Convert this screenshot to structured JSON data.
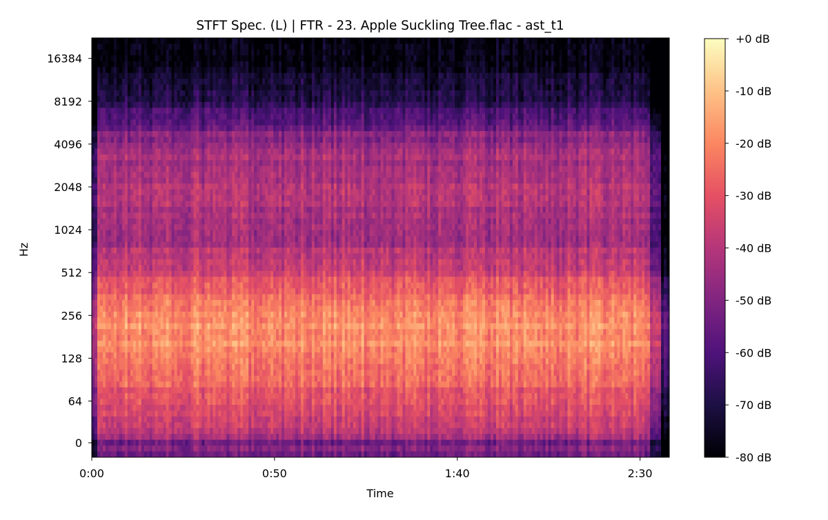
{
  "chart_data": {
    "type": "heatmap",
    "title": "STFT Spec. (L) | FTR - 23. Apple Suckling Tree.flac - ast_t1",
    "xlabel": "Time",
    "ylabel": "Hz",
    "y_scale": "log2 (symlog)",
    "colormap": "magma",
    "x_ticks": [
      {
        "label": "0:00",
        "seconds": 0
      },
      {
        "label": "0:50",
        "seconds": 50
      },
      {
        "label": "1:40",
        "seconds": 100
      },
      {
        "label": "2:30",
        "seconds": 150
      }
    ],
    "x_range_seconds": [
      0,
      158
    ],
    "y_ticks": [
      {
        "label": "16384",
        "hz": 16384
      },
      {
        "label": "8192",
        "hz": 8192
      },
      {
        "label": "4096",
        "hz": 4096
      },
      {
        "label": "2048",
        "hz": 2048
      },
      {
        "label": "1024",
        "hz": 1024
      },
      {
        "label": "512",
        "hz": 512
      },
      {
        "label": "256",
        "hz": 256
      },
      {
        "label": "128",
        "hz": 128
      },
      {
        "label": "64",
        "hz": 64
      },
      {
        "label": "0",
        "hz": 0
      }
    ],
    "y_range_hz": [
      0,
      22050
    ],
    "colorbar": {
      "ticks": [
        "+0 dB",
        "-10 dB",
        "-20 dB",
        "-30 dB",
        "-40 dB",
        "-50 dB",
        "-60 dB",
        "-70 dB",
        "-80 dB"
      ],
      "range_db": [
        -80,
        0
      ]
    },
    "band_profile_db": [
      {
        "hz": 0,
        "db": -52
      },
      {
        "hz": 40,
        "db": -35
      },
      {
        "hz": 64,
        "db": -33
      },
      {
        "hz": 100,
        "db": -22
      },
      {
        "hz": 128,
        "db": -20
      },
      {
        "hz": 200,
        "db": -18
      },
      {
        "hz": 256,
        "db": -20
      },
      {
        "hz": 400,
        "db": -28
      },
      {
        "hz": 512,
        "db": -34
      },
      {
        "hz": 1024,
        "db": -46
      },
      {
        "hz": 2048,
        "db": -40
      },
      {
        "hz": 4096,
        "db": -45
      },
      {
        "hz": 8192,
        "db": -68
      },
      {
        "hz": 16384,
        "db": -80
      }
    ]
  }
}
